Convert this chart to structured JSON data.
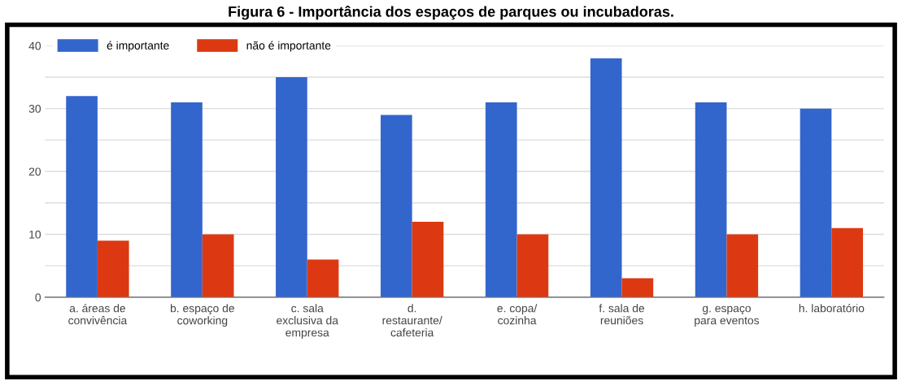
{
  "chart_data": {
    "type": "bar",
    "title": "Figura 6 - Importância dos espaços de parques ou incubadoras.",
    "categories": [
      "a. áreas de\nconvivência",
      "b. espaço de\ncoworking",
      "c. sala\nexclusiva da\nempresa",
      "d.\nrestaurante/\ncafeteria",
      "e. copa/\ncozinha",
      "f. sala de\nreuniões",
      "g. espaço\npara eventos",
      "h. laboratório"
    ],
    "series": [
      {
        "name": "é importante",
        "color": "#3366cc",
        "values": [
          32,
          31,
          35,
          29,
          31,
          38,
          31,
          30
        ]
      },
      {
        "name": "não é importante",
        "color": "#dc3912",
        "values": [
          9,
          10,
          6,
          12,
          10,
          3,
          10,
          11
        ]
      }
    ],
    "ylim": [
      0,
      40
    ],
    "yticks": [
      0,
      {
        "value": 5,
        "label": null
      },
      10,
      {
        "value": 15,
        "label": null
      },
      20,
      {
        "value": 25,
        "label": null
      },
      30,
      {
        "value": 35,
        "label": null
      },
      40
    ],
    "grid": "y",
    "legend": "top left"
  }
}
